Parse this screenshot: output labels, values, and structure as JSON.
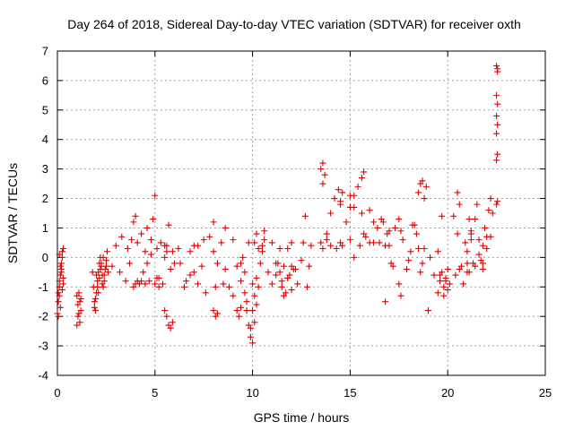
{
  "chart_data": {
    "type": "scatter",
    "title": "Day 264 of 2018, Sidereal Day-to-day VTEC variation (SDTVAR) for receiver oxth",
    "xlabel": "GPS time / hours",
    "ylabel": "SDTVAR / TECUs",
    "xlim": [
      0,
      25
    ],
    "ylim": [
      -4,
      7
    ],
    "xticks": [
      0,
      5,
      10,
      15,
      20,
      25
    ],
    "yticks": [
      -4,
      -3,
      -2,
      -1,
      0,
      1,
      2,
      3,
      4,
      5,
      6,
      7
    ],
    "xtick_labels": [
      "0",
      "5",
      "10",
      "15",
      "20",
      "25"
    ],
    "ytick_labels": [
      "-4",
      "-3",
      "-2",
      "-1",
      "0",
      "1",
      "2",
      "3",
      "4",
      "5",
      "6",
      "7"
    ],
    "grid": true,
    "marker": "plus",
    "color": "#e00000",
    "series": [
      {
        "name": "SDTVAR",
        "x": [
          0.0,
          0.05,
          0.1,
          0.15,
          0.2,
          0.25,
          0.3,
          0.05,
          0.1,
          0.2,
          0.25,
          0.15,
          0.3,
          0.1,
          0.2,
          0.05,
          0.25,
          0.15,
          0.3,
          0.1,
          1.0,
          1.05,
          1.1,
          1.15,
          1.2,
          1.1,
          1.05,
          1.15,
          1.0,
          1.2,
          1.8,
          1.85,
          1.9,
          1.95,
          2.0,
          2.05,
          2.1,
          2.15,
          2.2,
          2.25,
          2.3,
          2.35,
          2.4,
          2.45,
          2.5,
          2.55,
          2.6,
          1.9,
          2.0,
          2.1,
          2.2,
          2.3,
          2.4,
          2.5,
          1.95,
          2.05,
          2.15,
          2.25,
          2.35,
          2.8,
          3.0,
          3.2,
          3.3,
          3.5,
          3.6,
          3.7,
          3.8,
          3.9,
          4.0,
          4.1,
          4.2,
          4.3,
          4.4,
          4.5,
          4.6,
          4.7,
          4.8,
          4.9,
          5.0,
          5.1,
          5.2,
          5.3,
          5.4,
          5.5,
          5.6,
          5.7,
          5.8,
          5.9,
          6.0,
          3.9,
          4.0,
          4.1,
          4.3,
          4.5,
          5.0,
          5.1,
          5.2,
          4.6,
          4.8,
          5.5,
          5.6,
          5.5,
          5.6,
          5.7,
          5.8,
          5.9,
          6.2,
          6.3,
          6.5,
          6.6,
          6.8,
          7.0,
          7.2,
          7.4,
          7.6,
          7.8,
          8.0,
          8.2,
          8.4,
          8.5,
          8.6,
          8.8,
          9.0,
          9.2,
          9.4,
          9.5,
          9.6,
          9.8,
          6.8,
          7.0,
          7.2,
          7.5,
          8.0,
          8.1,
          8.6,
          9.0,
          9.2,
          9.4,
          8.0,
          8.1,
          8.2,
          9.3,
          9.4,
          9.6,
          9.7,
          9.8,
          9.9,
          10.0,
          10.1,
          10.2,
          10.3,
          10.4,
          10.5,
          10.6,
          10.0,
          10.1,
          10.2,
          10.3,
          9.9,
          10.0,
          10.1,
          10.2,
          9.7,
          10.5,
          10.6,
          10.8,
          11.0,
          11.2,
          11.4,
          11.6,
          11.8,
          12.0,
          12.2,
          11.0,
          11.2,
          11.5,
          11.8,
          12.0,
          12.5,
          12.6,
          12.7,
          12.8,
          12.9,
          13.0,
          11.3,
          11.5,
          11.7,
          11.9,
          12.1,
          12.3,
          11.4,
          11.6,
          11.8,
          12.0,
          13.5,
          13.6,
          13.8,
          14.0,
          14.2,
          14.4,
          14.5,
          14.6,
          14.8,
          15.0,
          15.2,
          15.4,
          15.6,
          15.8,
          16.0,
          16.2,
          16.4,
          16.6,
          16.8,
          17.0,
          13.5,
          13.6,
          13.8,
          14.0,
          14.3,
          14.5,
          15.0,
          15.2,
          15.5,
          15.7,
          16.0,
          16.2,
          13.6,
          13.7,
          14.5,
          15.6,
          15.7,
          14.6,
          15.0,
          15.2,
          16.5,
          16.7,
          16.9,
          17.1,
          17.3,
          17.5,
          17.7,
          17.9,
          18.1,
          18.3,
          18.5,
          18.7,
          18.9,
          19.1,
          19.3,
          19.5,
          19.7,
          19.9,
          16.8,
          17.0,
          17.2,
          17.6,
          18.0,
          18.2,
          18.4,
          18.6,
          18.8,
          18.5,
          18.6,
          18.7,
          18.8,
          17.5,
          17.6,
          19.0,
          19.5,
          19.6,
          19.7,
          19.8,
          19.9,
          20.0,
          20.1,
          19.6,
          19.8,
          20.0,
          20.3,
          20.5,
          20.7,
          20.9,
          21.0,
          21.1,
          21.2,
          21.3,
          21.4,
          21.5,
          21.6,
          21.7,
          21.8,
          21.9,
          22.0,
          22.1,
          22.2,
          22.3,
          20.4,
          20.6,
          20.8,
          21.0,
          21.2,
          21.4,
          21.6,
          21.8,
          22.0,
          22.2,
          20.5,
          20.6,
          21.0,
          21.1,
          21.2,
          21.8,
          22.5,
          22.55,
          22.5,
          22.55,
          22.5,
          22.55,
          22.5,
          22.55,
          22.5,
          22.55,
          22.5,
          22.55
        ],
        "y": [
          -1.9,
          -1.5,
          -1.0,
          -0.6,
          -0.2,
          0.2,
          0.3,
          -1.2,
          -0.8,
          -0.4,
          0.0,
          -1.7,
          -0.9,
          0.1,
          -0.5,
          -2.0,
          -1.1,
          -0.3,
          -0.7,
          -1.3,
          -1.3,
          -1.6,
          -1.9,
          -2.2,
          -1.8,
          -1.2,
          -2.0,
          -1.5,
          -2.3,
          -1.4,
          -0.5,
          -1.0,
          -1.5,
          -1.8,
          -1.2,
          -0.8,
          -0.5,
          -0.2,
          0.0,
          -0.3,
          -0.6,
          -1.0,
          -0.8,
          -0.4,
          -0.1,
          0.2,
          -0.5,
          -1.7,
          -0.6,
          -1.2,
          -0.4,
          -0.9,
          -0.6,
          -0.3,
          -1.4,
          -1.0,
          -0.7,
          -0.2,
          0.0,
          -0.3,
          0.4,
          -0.5,
          0.7,
          -0.8,
          0.3,
          -0.2,
          0.6,
          1.2,
          1.4,
          0.5,
          -0.9,
          0.8,
          -0.5,
          0.2,
          1.0,
          -0.8,
          0.6,
          1.3,
          2.1,
          0.3,
          -0.7,
          0.5,
          -0.9,
          0.0,
          0.4,
          1.1,
          -0.4,
          0.2,
          -0.2,
          -1.0,
          -0.9,
          -0.8,
          -0.8,
          -0.9,
          -0.9,
          -0.7,
          -1.0,
          -0.2,
          0.1,
          0.4,
          0.2,
          -1.8,
          -2.0,
          -2.3,
          -2.4,
          -2.2,
          0.3,
          -0.2,
          -1.0,
          -0.8,
          0.2,
          -0.5,
          0.4,
          -0.3,
          -1.2,
          0.7,
          1.2,
          -0.2,
          0.5,
          -0.9,
          -0.4,
          -1.0,
          0.6,
          -0.3,
          -0.8,
          0.0,
          -1.2,
          0.5,
          -0.6,
          0.4,
          -0.9,
          0.6,
          0.2,
          -1.0,
          1.0,
          -1.3,
          -1.8,
          -0.2,
          -1.8,
          -2.0,
          -1.9,
          -2.0,
          -1.7,
          -0.5,
          -1.5,
          -2.3,
          -2.7,
          -2.9,
          -2.2,
          -1.6,
          -1.0,
          -0.2,
          0.2,
          0.6,
          -1.8,
          -1.3,
          -0.7,
          0.3,
          -2.4,
          -0.9,
          0.5,
          0.8,
          -1.8,
          0.4,
          0.9,
          -0.5,
          -0.9,
          -0.2,
          0.3,
          -1.3,
          -0.7,
          0.5,
          -0.4,
          0.5,
          -0.6,
          -1.0,
          0.3,
          -0.3,
          -0.1,
          0.5,
          1.4,
          -1.0,
          -0.3,
          0.4,
          -0.2,
          -0.8,
          -1.2,
          -0.6,
          -0.4,
          -0.9,
          -0.5,
          -0.3,
          -0.7,
          -1.1,
          0.5,
          3.2,
          0.8,
          1.5,
          2.0,
          2.3,
          1.8,
          0.4,
          1.2,
          1.7,
          2.1,
          2.4,
          1.5,
          0.7,
          1.6,
          0.5,
          1.0,
          1.3,
          0.4,
          0.9,
          3.0,
          0.3,
          0.6,
          0.4,
          0.3,
          0.5,
          0.6,
          0.0,
          0.4,
          0.8,
          0.5,
          1.2,
          2.5,
          2.8,
          1.9,
          2.7,
          2.9,
          2.2,
          2.1,
          1.7,
          0.5,
          1.2,
          0.8,
          -0.2,
          1.0,
          1.3,
          0.6,
          -0.4,
          0.2,
          1.1,
          0.3,
          -0.2,
          2.4,
          0.0,
          -0.6,
          0.2,
          1.4,
          -0.8,
          -1.5,
          0.4,
          -0.3,
          0.9,
          -0.1,
          1.1,
          0.8,
          -0.5,
          0.3,
          2.2,
          2.5,
          2.6,
          2.0,
          -0.9,
          -1.3,
          -1.8,
          -1.2,
          -0.8,
          -0.5,
          -1.0,
          -0.7,
          -1.1,
          -0.9,
          -0.6,
          -1.3,
          -0.4,
          1.4,
          0.8,
          -0.3,
          0.5,
          0.2,
          -0.5,
          0.9,
          -0.2,
          1.3,
          1.8,
          0.6,
          -0.1,
          0.4,
          1.0,
          0.7,
          1.6,
          2.0,
          1.5,
          -0.6,
          -0.4,
          -0.9,
          -0.2,
          0.6,
          -0.3,
          0.1,
          -0.4,
          0.3,
          0.7,
          2.2,
          1.8,
          -0.5,
          1.3,
          0.8,
          -0.2,
          6.5,
          6.3,
          5.5,
          5.2,
          4.8,
          4.5,
          4.2,
          3.5,
          3.3,
          1.9,
          1.8,
          6.4
        ]
      }
    ]
  }
}
